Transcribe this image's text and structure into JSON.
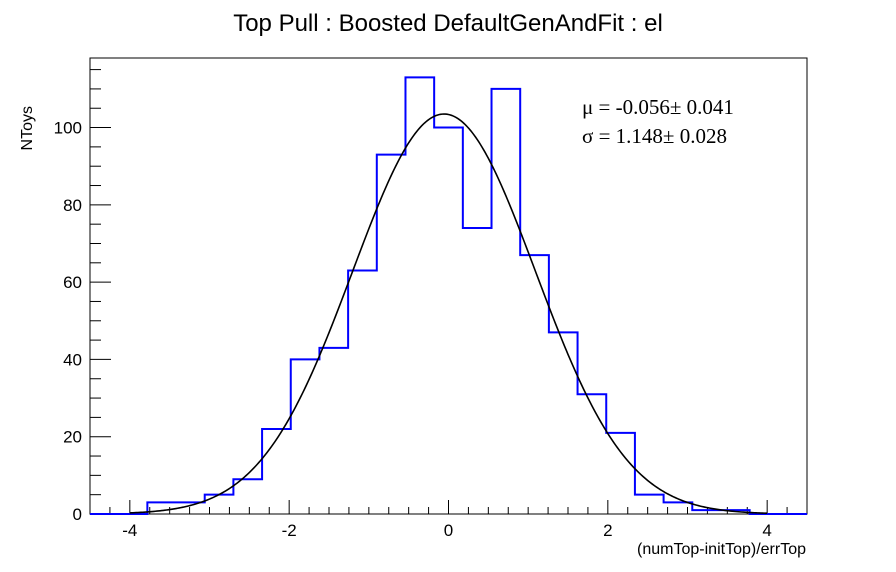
{
  "chart_data": {
    "type": "histogram",
    "title": "Top Pull : Boosted DefaultGenAndFit : el",
    "xlabel": "(numTop-initTop)/errTop",
    "ylabel": "NToys",
    "xlim": [
      -4.5,
      4.5
    ],
    "ylim": [
      0,
      118
    ],
    "x_ticks": [
      -4,
      -2,
      0,
      2,
      4
    ],
    "y_ticks": [
      0,
      20,
      40,
      60,
      80,
      100
    ],
    "bin_width": 0.36,
    "bin_edges": [
      -4.5,
      -4.14,
      -3.78,
      -3.42,
      -3.06,
      -2.7,
      -2.34,
      -1.98,
      -1.62,
      -1.26,
      -0.9,
      -0.54,
      -0.18,
      0.18,
      0.54,
      0.9,
      1.26,
      1.62,
      1.98,
      2.34,
      2.7,
      3.06,
      3.42,
      3.78,
      4.14,
      4.5
    ],
    "bin_counts": [
      0,
      0,
      3,
      3,
      5,
      9,
      22,
      40,
      43,
      63,
      93,
      113,
      100,
      74,
      110,
      67,
      47,
      31,
      21,
      5,
      3,
      1,
      1,
      0,
      0
    ],
    "fit": {
      "function": "gaus",
      "mean": -0.056,
      "sigma": 1.148,
      "amplitude": 103.5
    },
    "stats": {
      "mu_text": "μ = -0.056± 0.041",
      "sigma_text": "σ =  1.148± 0.028"
    },
    "colors": {
      "histogram": "#0000ff",
      "fit": "#000000",
      "axes": "#000000"
    },
    "grid": false
  }
}
